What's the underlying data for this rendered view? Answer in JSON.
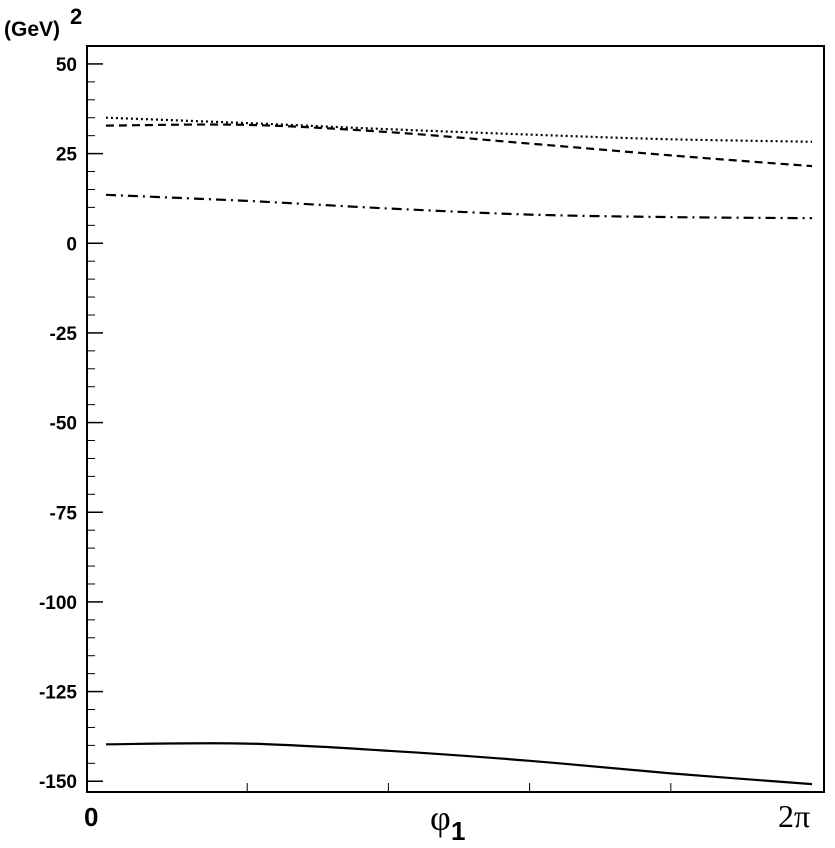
{
  "chart_data": {
    "type": "line",
    "ylabel_unit": "(GeV)",
    "ylabel_unit_power": "2",
    "xlabel_main": "φ",
    "xlabel_sub": "1",
    "ylim": [
      -153,
      55
    ],
    "xlim": [
      0,
      6.2832
    ],
    "y_ticks": [
      50,
      25,
      0,
      -25,
      -50,
      -75,
      -100,
      -125,
      -150
    ],
    "y_tick_labels": [
      "50",
      "25",
      "0",
      "-25",
      "-50",
      "-75",
      "-100",
      "-125",
      "-150"
    ],
    "x_tick_labels": {
      "start": "0",
      "end": "2π"
    },
    "x_minor_ticks": [
      1.2566,
      2.5133,
      3.7699,
      5.0265
    ],
    "series": [
      {
        "style": "dotted",
        "x": [
          0.0,
          1.2566,
          2.5133,
          3.7699,
          5.0265,
          6.2832
        ],
        "y": [
          35.0,
          33.5,
          31.8,
          30.3,
          29.0,
          28.3
        ]
      },
      {
        "style": "dashed",
        "x": [
          0.0,
          1.2566,
          2.5133,
          3.7699,
          5.0265,
          6.2832
        ],
        "y": [
          32.8,
          33.0,
          31.0,
          27.8,
          24.5,
          21.5
        ]
      },
      {
        "style": "dash-dot",
        "x": [
          0.0,
          1.2566,
          2.5133,
          3.7699,
          5.0265,
          6.2832
        ],
        "y": [
          13.5,
          11.8,
          9.7,
          8.0,
          7.3,
          7.0
        ]
      },
      {
        "style": "solid",
        "x": [
          0.0,
          1.2566,
          2.5133,
          3.7699,
          5.0265,
          6.2832
        ],
        "y": [
          -139.7,
          -139.5,
          -141.5,
          -144.3,
          -147.8,
          -150.8
        ]
      }
    ]
  }
}
